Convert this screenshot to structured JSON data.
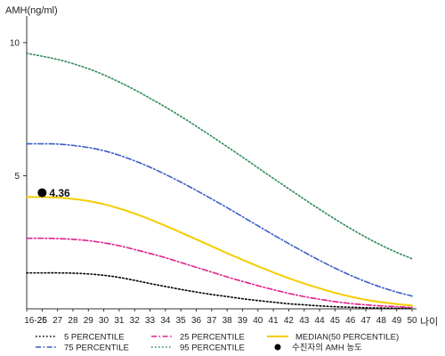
{
  "chart_data": {
    "type": "line",
    "title": "",
    "ylabel": "AMH(ng/ml)",
    "xlabel": "나이",
    "ylim": [
      0,
      11
    ],
    "yticks": [
      5,
      10
    ],
    "x": [
      "16-25",
      "26",
      "27",
      "28",
      "29",
      "30",
      "31",
      "32",
      "33",
      "34",
      "35",
      "36",
      "37",
      "38",
      "39",
      "40",
      "41",
      "42",
      "43",
      "44",
      "45",
      "46",
      "47",
      "48",
      "49",
      "50"
    ],
    "grid": false,
    "legend_position": "bottom",
    "series": [
      {
        "name": "5 PERCENTILE",
        "color": "#000000",
        "dash": "dot",
        "values": [
          1.35,
          1.35,
          1.35,
          1.34,
          1.31,
          1.26,
          1.18,
          1.07,
          0.95,
          0.84,
          0.73,
          0.63,
          0.54,
          0.46,
          0.38,
          0.31,
          0.25,
          0.19,
          0.15,
          0.11,
          0.08,
          0.06,
          0.04,
          0.03,
          0.02,
          0.02
        ]
      },
      {
        "name": "25 PERCENTILE",
        "color": "#e0208e",
        "dash": "dashdot",
        "values": [
          2.65,
          2.65,
          2.64,
          2.61,
          2.56,
          2.48,
          2.37,
          2.23,
          2.08,
          1.92,
          1.74,
          1.56,
          1.38,
          1.2,
          1.03,
          0.87,
          0.72,
          0.58,
          0.46,
          0.36,
          0.27,
          0.2,
          0.15,
          0.11,
          0.08,
          0.05
        ]
      },
      {
        "name": "MEDIAN(50 PERCENTILE)",
        "color": "#f5cc00",
        "dash": "solid",
        "values": [
          4.2,
          4.2,
          4.18,
          4.13,
          4.05,
          3.93,
          3.77,
          3.58,
          3.36,
          3.12,
          2.87,
          2.61,
          2.35,
          2.09,
          1.84,
          1.6,
          1.37,
          1.15,
          0.95,
          0.77,
          0.6,
          0.46,
          0.34,
          0.25,
          0.18,
          0.12
        ]
      },
      {
        "name": "75 PERCENTILE",
        "color": "#3a5fc8",
        "dash": "dashdot",
        "values": [
          6.2,
          6.2,
          6.19,
          6.14,
          6.06,
          5.94,
          5.77,
          5.56,
          5.32,
          5.05,
          4.76,
          4.45,
          4.13,
          3.8,
          3.46,
          3.12,
          2.78,
          2.45,
          2.13,
          1.82,
          1.53,
          1.26,
          1.02,
          0.81,
          0.63,
          0.48
        ]
      },
      {
        "name": "95 PERCENTILE",
        "color": "#2e8b57",
        "dash": "dot",
        "values": [
          9.6,
          9.49,
          9.37,
          9.21,
          9.02,
          8.79,
          8.52,
          8.23,
          7.91,
          7.58,
          7.23,
          6.86,
          6.48,
          6.09,
          5.7,
          5.3,
          4.9,
          4.51,
          4.12,
          3.74,
          3.37,
          3.02,
          2.69,
          2.39,
          2.12,
          1.88
        ]
      }
    ],
    "highlight_point": {
      "name": "수진자의 AMH 농도",
      "x": "26",
      "y": 4.36,
      "label": "4.36",
      "color": "#000000"
    }
  }
}
